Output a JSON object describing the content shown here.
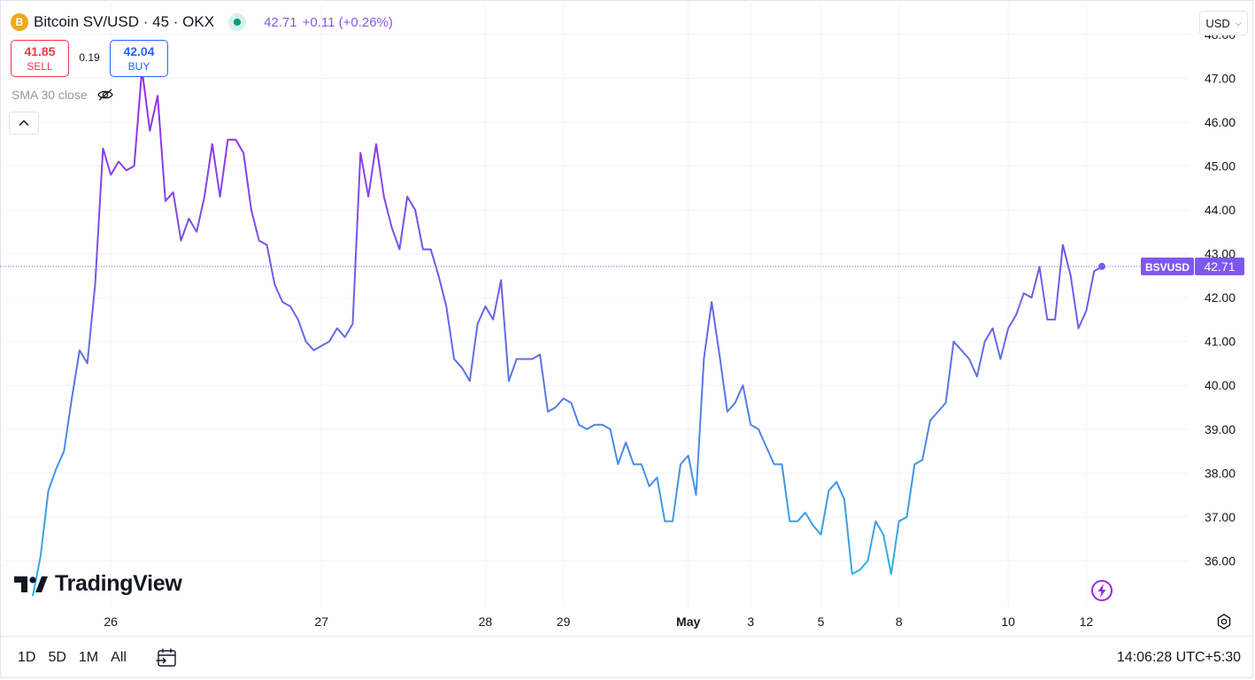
{
  "header": {
    "coin_symbol": "B",
    "title": "Bitcoin SV/USD · 45 · OKX",
    "last": "42.71",
    "change": "+0.11 (+0.26%)"
  },
  "trade": {
    "sell_price": "41.85",
    "sell_label": "SELL",
    "spread": "0.19",
    "buy_price": "42.04",
    "buy_label": "BUY"
  },
  "indicator": {
    "label": "SMA 30 close",
    "icon": "eye-off-icon"
  },
  "currency": {
    "selected": "USD"
  },
  "logo": {
    "text": "TradingView"
  },
  "bottom": {
    "ranges": [
      "1D",
      "5D",
      "1M",
      "All"
    ],
    "clock": "14:06:28 UTC+5:30"
  },
  "colors": {
    "line_start": "#29b6e6",
    "line_mid": "#5f6fe8",
    "line_end": "#9c27e8",
    "badge": "#7e57f2",
    "grid": "#f0f3fa"
  },
  "chart_data": {
    "type": "line",
    "series": [
      {
        "name": "BSVUSD",
        "values": [
          35.2,
          36.1,
          37.6,
          38.1,
          38.5,
          39.7,
          40.8,
          40.5,
          42.3,
          45.4,
          44.8,
          45.1,
          44.9,
          45.0,
          47.2,
          45.8,
          46.6,
          44.2,
          44.4,
          43.3,
          43.8,
          43.5,
          44.3,
          45.5,
          44.3,
          45.6,
          45.6,
          45.3,
          44.0,
          43.3,
          43.2,
          42.3,
          41.9,
          41.8,
          41.5,
          41.0,
          40.8,
          40.9,
          41.0,
          41.3,
          41.1,
          41.4,
          45.3,
          44.3,
          45.5,
          44.3,
          43.6,
          43.1,
          44.3,
          44.0,
          43.1,
          43.1,
          42.5,
          41.8,
          40.6,
          40.4,
          40.1,
          41.4,
          41.8,
          41.5,
          42.4,
          40.1,
          40.6,
          40.6,
          40.6,
          40.7,
          39.4,
          39.5,
          39.7,
          39.6,
          39.1,
          39.0,
          39.1,
          39.1,
          39.0,
          38.2,
          38.7,
          38.2,
          38.2,
          37.7,
          37.9,
          36.9,
          36.9,
          38.2,
          38.4,
          37.5,
          40.6,
          41.9,
          40.7,
          39.4,
          39.6,
          40.0,
          39.1,
          39.0,
          38.6,
          38.2,
          38.2,
          36.9,
          36.9,
          37.1,
          36.8,
          36.6,
          37.6,
          37.8,
          37.4,
          35.7,
          35.8,
          36.0,
          36.9,
          36.6,
          35.7,
          36.9,
          37.0,
          38.2,
          38.3,
          39.2,
          39.4,
          39.6,
          41.0,
          40.8,
          40.6,
          40.2,
          41.0,
          41.3,
          40.6,
          41.3,
          41.6,
          42.1,
          42.0,
          42.7,
          41.5,
          41.5,
          43.2,
          42.5,
          41.3,
          41.7,
          42.6,
          42.71
        ]
      }
    ],
    "x_ticks": [
      {
        "label": "26",
        "index": 10
      },
      {
        "label": "27",
        "index": 37
      },
      {
        "label": "28",
        "index": 58
      },
      {
        "label": "29",
        "index": 68
      },
      {
        "label": "May",
        "index": 84
      },
      {
        "label": "3",
        "index": 92
      },
      {
        "label": "5",
        "index": 101
      },
      {
        "label": "8",
        "index": 111
      },
      {
        "label": "10",
        "index": 125
      },
      {
        "label": "12",
        "index": 135
      }
    ],
    "y_ticks": [
      "36.00",
      "37.00",
      "38.00",
      "39.00",
      "40.00",
      "41.00",
      "42.00",
      "43.00",
      "44.00",
      "45.00",
      "46.00",
      "47.00",
      "48.00"
    ],
    "ylim": [
      35.0,
      48.5
    ],
    "last_value": 42.71,
    "last_label": "42.71",
    "series_label": "BSVUSD",
    "grid": true
  }
}
